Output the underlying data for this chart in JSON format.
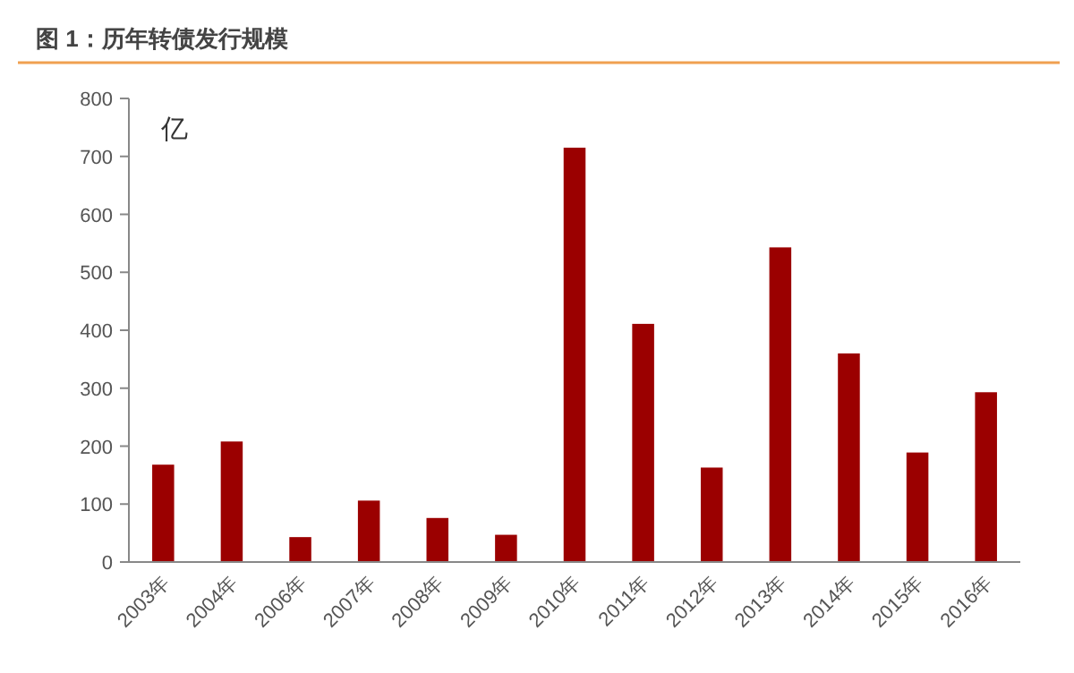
{
  "chart_data": {
    "type": "bar",
    "title": "图 1：历年转债发行规模",
    "categories": [
      "2003年",
      "2004年",
      "2006年",
      "2007年",
      "2008年",
      "2009年",
      "2010年",
      "2011年",
      "2012年",
      "2013年",
      "2014年",
      "2015年",
      "2016年"
    ],
    "values": [
      168,
      208,
      43,
      106,
      76,
      47,
      715,
      411,
      163,
      543,
      360,
      189,
      293
    ],
    "color": "#9b0000",
    "annotations": [
      "亿"
    ],
    "ylim": [
      0,
      800
    ],
    "yticks": [
      0,
      100,
      200,
      300,
      400,
      500,
      600,
      700,
      800
    ]
  }
}
